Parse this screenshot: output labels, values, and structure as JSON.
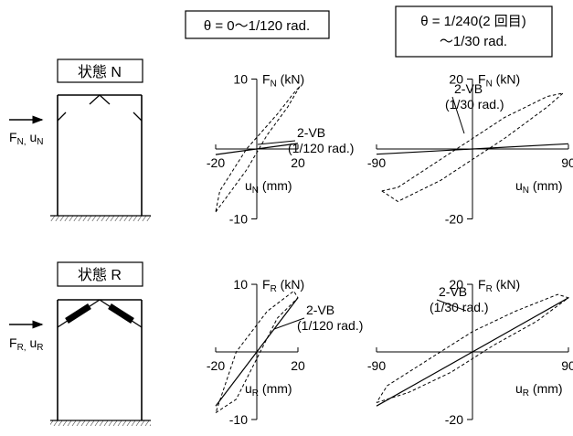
{
  "headers": {
    "left": "θ = 0〜1/120 rad.",
    "right_line1": "θ = 1/240(2 回目)",
    "right_line2": "〜1/30 rad."
  },
  "states": {
    "n_label": "状態 N",
    "r_label": "状態 R",
    "n_force": "F",
    "n_force_sub": "N,",
    "n_disp": " u",
    "n_disp_sub": "N",
    "r_force": "F",
    "r_force_sub": "R,",
    "r_disp": " u",
    "r_disp_sub": "R"
  },
  "chart_data": [
    {
      "type": "line",
      "panel": "N, θ = 0〜1/120 rad.",
      "ylabel": "FN (kN)",
      "xlabel": "uN (mm)",
      "xlim": [
        -20,
        20
      ],
      "ylim": [
        -10,
        10
      ],
      "x_ticks": [
        "-20",
        "20"
      ],
      "y_ticks": [
        "10",
        "-10"
      ],
      "annotation": [
        "2-VB",
        "(1/120 rad.)"
      ],
      "series": [
        {
          "style": "solid",
          "x": [
            -20,
            20
          ],
          "y": [
            -0.8,
            0.8
          ]
        },
        {
          "style": "dashed",
          "x": [
            -20,
            -15,
            -5,
            5,
            15,
            21,
            18,
            10,
            -5,
            -18,
            -20
          ],
          "y": [
            -9,
            -7,
            -3,
            2,
            6,
            9,
            8,
            5,
            0,
            -6,
            -9
          ]
        }
      ]
    },
    {
      "type": "line",
      "panel": "N, θ = 1/240〜1/30 rad.",
      "ylabel": "FN (kN)",
      "xlabel": "uN (mm)",
      "xlim": [
        -90,
        90
      ],
      "ylim": [
        -20,
        20
      ],
      "x_ticks": [
        "-90",
        "90"
      ],
      "y_ticks": [
        "20",
        "-20"
      ],
      "annotation": [
        "2-VB",
        "(1/30 rad.)"
      ],
      "series": [
        {
          "style": "solid",
          "x": [
            -90,
            90
          ],
          "y": [
            -1.5,
            1.5
          ]
        },
        {
          "style": "dashed",
          "x": [
            -85,
            -70,
            -30,
            30,
            70,
            85,
            70,
            30,
            -30,
            -70,
            -85
          ],
          "y": [
            -12,
            -15,
            -9,
            3,
            12,
            16,
            15,
            9,
            -3,
            -11,
            -12
          ]
        }
      ]
    },
    {
      "type": "line",
      "panel": "R, θ = 0〜1/120 rad.",
      "ylabel": "FR (kN)",
      "xlabel": "uR (mm)",
      "xlim": [
        -20,
        20
      ],
      "ylim": [
        -10,
        10
      ],
      "x_ticks": [
        "-20",
        "20"
      ],
      "y_ticks": [
        "10",
        "-10"
      ],
      "annotation": [
        "2-VB",
        "(1/120 rad.)"
      ],
      "series": [
        {
          "style": "solid",
          "x": [
            -20,
            -10,
            0,
            10,
            20
          ],
          "y": [
            -8,
            -4,
            0,
            4,
            8
          ]
        },
        {
          "style": "dashed",
          "x": [
            -20,
            -10,
            0,
            10,
            20,
            18,
            5,
            -10,
            -20
          ],
          "y": [
            -9,
            -7,
            -1,
            5,
            8,
            9,
            6,
            0,
            -9
          ]
        }
      ]
    },
    {
      "type": "line",
      "panel": "R, θ = 1/240〜1/30 rad.",
      "ylabel": "FR (kN)",
      "xlabel": "uR (mm)",
      "xlim": [
        -90,
        90
      ],
      "ylim": [
        -20,
        20
      ],
      "x_ticks": [
        "-90",
        "90"
      ],
      "y_ticks": [
        "20",
        "-20"
      ],
      "annotation": [
        "2-VB",
        "(1/30 rad.)"
      ],
      "series": [
        {
          "style": "solid",
          "x": [
            -90,
            -45,
            0,
            45,
            90
          ],
          "y": [
            -16,
            -8,
            0,
            8,
            16
          ]
        },
        {
          "style": "dashed",
          "x": [
            -90,
            -60,
            -20,
            20,
            60,
            90,
            80,
            40,
            0,
            -40,
            -80,
            -90
          ],
          "y": [
            -15,
            -12,
            -6,
            2,
            9,
            16,
            17,
            12,
            6,
            -2,
            -10,
            -15
          ]
        }
      ]
    }
  ]
}
